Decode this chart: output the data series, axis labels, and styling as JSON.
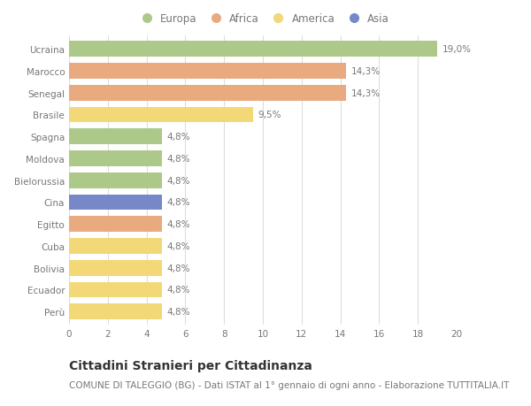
{
  "categories": [
    "Ucraina",
    "Marocco",
    "Senegal",
    "Brasile",
    "Spagna",
    "Moldova",
    "Bielorussia",
    "Cina",
    "Egitto",
    "Cuba",
    "Bolivia",
    "Ecuador",
    "Perù"
  ],
  "values": [
    19.0,
    14.3,
    14.3,
    9.5,
    4.8,
    4.8,
    4.8,
    4.8,
    4.8,
    4.8,
    4.8,
    4.8,
    4.8
  ],
  "labels": [
    "19,0%",
    "14,3%",
    "14,3%",
    "9,5%",
    "4,8%",
    "4,8%",
    "4,8%",
    "4,8%",
    "4,8%",
    "4,8%",
    "4,8%",
    "4,8%",
    "4,8%"
  ],
  "colors": [
    "#adc98a",
    "#e8aa7e",
    "#e8aa7e",
    "#f2d877",
    "#adc98a",
    "#adc98a",
    "#adc98a",
    "#7788c8",
    "#e8aa7e",
    "#f2d877",
    "#f2d877",
    "#f2d877",
    "#f2d877"
  ],
  "legend_labels": [
    "Europa",
    "Africa",
    "America",
    "Asia"
  ],
  "legend_colors": [
    "#adc98a",
    "#e8aa7e",
    "#f2d877",
    "#7788c8"
  ],
  "title": "Cittadini Stranieri per Cittadinanza",
  "subtitle": "COMUNE DI TALEGGIO (BG) - Dati ISTAT al 1° gennaio di ogni anno - Elaborazione TUTTITALIA.IT",
  "xlim": [
    0,
    20
  ],
  "xticks": [
    0,
    2,
    4,
    6,
    8,
    10,
    12,
    14,
    16,
    18,
    20
  ],
  "background_color": "#ffffff",
  "grid_color": "#dddddd",
  "bar_height": 0.72,
  "title_fontsize": 10,
  "subtitle_fontsize": 7.5,
  "label_fontsize": 7.5,
  "tick_fontsize": 7.5,
  "legend_fontsize": 8.5
}
